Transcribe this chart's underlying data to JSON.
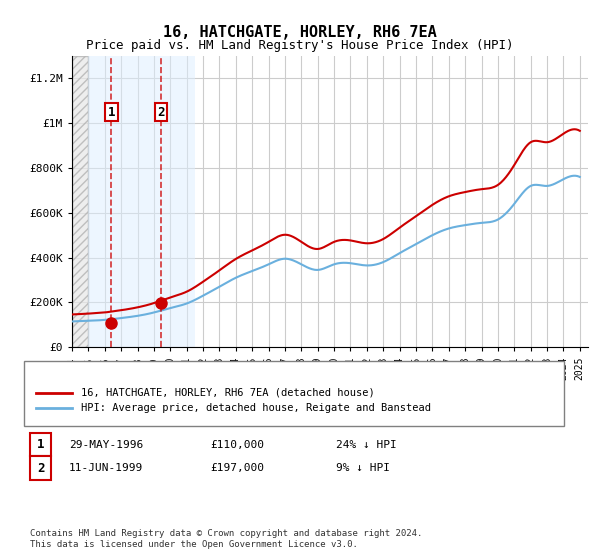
{
  "title": "16, HATCHGATE, HORLEY, RH6 7EA",
  "subtitle": "Price paid vs. HM Land Registry's House Price Index (HPI)",
  "title_fontsize": 11,
  "subtitle_fontsize": 9,
  "ylabel": "",
  "xlabel": "",
  "ylim": [
    0,
    1300000
  ],
  "yticks": [
    0,
    200000,
    400000,
    600000,
    800000,
    1000000,
    1200000
  ],
  "ytick_labels": [
    "£0",
    "£200K",
    "£400K",
    "£600K",
    "£800K",
    "£1M",
    "£1.2M"
  ],
  "xmin": 1994.0,
  "xmax": 2025.5,
  "sale1_x": 1996.41,
  "sale1_y": 110000,
  "sale2_x": 1999.44,
  "sale2_y": 197000,
  "sale1_label": "1",
  "sale2_label": "2",
  "hpi_color": "#6ab0de",
  "price_color": "#cc0000",
  "hatch_end": 1995.0,
  "shade_start": 1995.0,
  "shade_end": 2001.5,
  "legend_line1": "16, HATCHGATE, HORLEY, RH6 7EA (detached house)",
  "legend_line2": "HPI: Average price, detached house, Reigate and Banstead",
  "table_row1": [
    "1",
    "29-MAY-1996",
    "£110,000",
    "24% ↓ HPI"
  ],
  "table_row2": [
    "2",
    "11-JUN-1999",
    "£197,000",
    "9% ↓ HPI"
  ],
  "footnote": "Contains HM Land Registry data © Crown copyright and database right 2024.\nThis data is licensed under the Open Government Licence v3.0.",
  "background_color": "#ffffff",
  "plot_bg_color": "#ffffff",
  "grid_color": "#cccccc"
}
